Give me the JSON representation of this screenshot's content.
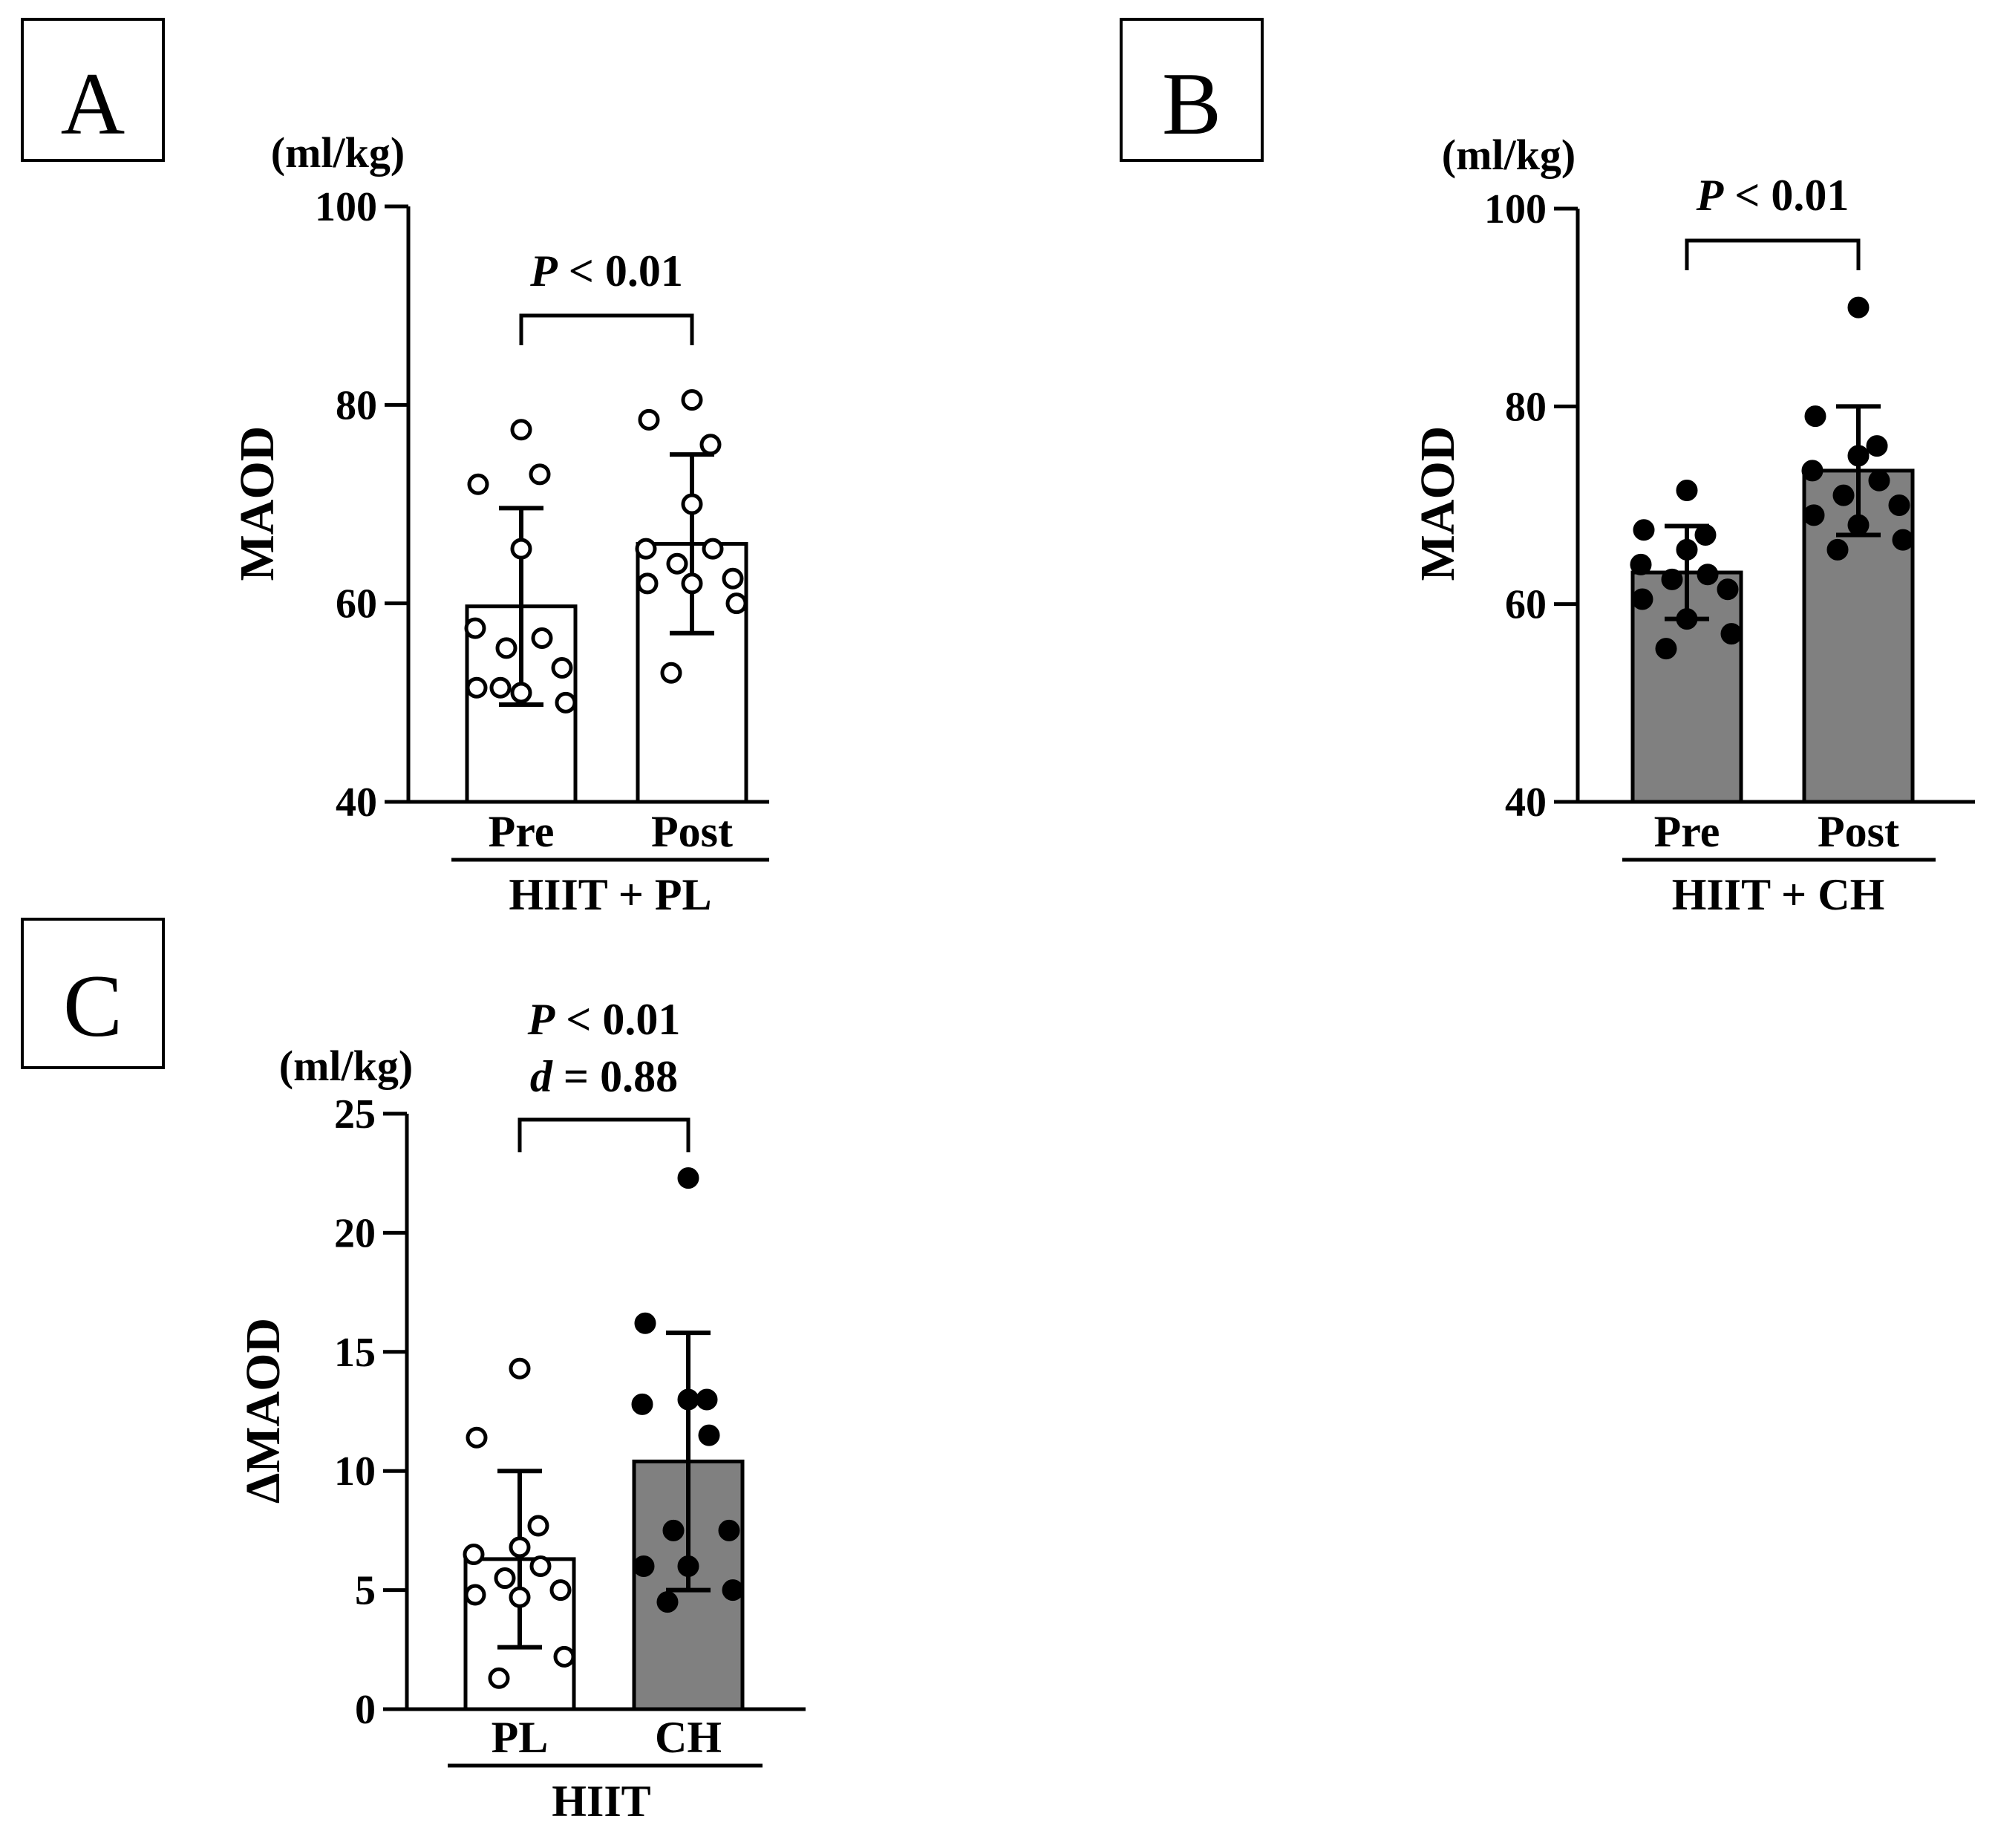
{
  "figure": {
    "panels": [
      {
        "id": "A",
        "letter": "A"
      },
      {
        "id": "B",
        "letter": "B"
      },
      {
        "id": "C",
        "letter": "C"
      }
    ]
  },
  "colors": {
    "white_bar": "#ffffff",
    "gray_bar": "#808080",
    "axis": "#000000",
    "open_point_fill": "#ffffff",
    "filled_point_fill": "#000000"
  },
  "chart_data": [
    {
      "panel": "A",
      "type": "bar",
      "unit_label": "(ml/kg)",
      "ylabel": "MAOD",
      "ylim": [
        40,
        100
      ],
      "yticks": [
        40,
        60,
        80,
        100
      ],
      "categories": [
        "Pre",
        "Post"
      ],
      "group_label": "HIIT + PL",
      "significance": {
        "p_prefix": "P",
        "p_text": " < 0.01",
        "d_prefix": "",
        "d_text": ""
      },
      "bar_colors": [
        "#ffffff",
        "#ffffff"
      ],
      "point_style": "open",
      "means": [
        59.7,
        66.0
      ],
      "sd": [
        9.9,
        9.0
      ],
      "points": [
        [
          77.5,
          72.0,
          73.0,
          65.5,
          57.5,
          56.5,
          55.5,
          53.5,
          51.5,
          51.0,
          50.0,
          51.5
        ],
        [
          80.5,
          78.5,
          76.0,
          70.0,
          65.5,
          65.5,
          64.0,
          62.5,
          62.0,
          62.0,
          60.0,
          53.0
        ]
      ]
    },
    {
      "panel": "B",
      "type": "bar",
      "unit_label": "(ml/kg)",
      "ylabel": "MAOD",
      "ylim": [
        40,
        100
      ],
      "yticks": [
        40,
        60,
        80,
        100
      ],
      "categories": [
        "Pre",
        "Post"
      ],
      "group_label": "HIIT + CH",
      "significance": {
        "p_prefix": "P",
        "p_text": " < 0.01",
        "d_prefix": "",
        "d_text": ""
      },
      "bar_colors": [
        "#808080",
        "#808080"
      ],
      "point_style": "filled",
      "means": [
        63.2,
        73.5
      ],
      "sd": [
        4.7,
        6.5
      ],
      "points": [
        [
          71.5,
          67.5,
          67.0,
          65.5,
          64.0,
          63.0,
          62.5,
          61.5,
          60.5,
          58.5,
          57.0,
          55.5
        ],
        [
          90.0,
          79.0,
          76.0,
          75.0,
          73.5,
          72.5,
          71.0,
          70.0,
          69.0,
          68.0,
          66.5,
          65.5
        ]
      ]
    },
    {
      "panel": "C",
      "type": "bar",
      "unit_label": "(ml/kg)",
      "ylabel": "ΔMAOD",
      "ylim": [
        0,
        25
      ],
      "yticks": [
        0,
        5,
        10,
        15,
        20,
        25
      ],
      "categories": [
        "PL",
        "CH"
      ],
      "group_label": "HIIT",
      "significance": {
        "p_prefix": "P",
        "p_text": " < 0.01",
        "d_prefix": "d",
        "d_text": " = 0.88"
      },
      "bar_colors": [
        "#ffffff",
        "#808080"
      ],
      "point_style": "mixed",
      "means": [
        6.3,
        10.4
      ],
      "sd": [
        3.7,
        5.4
      ],
      "points": [
        [
          14.3,
          11.4,
          7.7,
          6.8,
          6.5,
          6.0,
          5.5,
          5.0,
          4.8,
          4.7,
          2.2,
          1.3
        ],
        [
          22.3,
          16.2,
          13.0,
          13.0,
          12.8,
          11.5,
          7.5,
          7.5,
          6.0,
          6.0,
          5.0,
          4.5
        ]
      ]
    }
  ]
}
